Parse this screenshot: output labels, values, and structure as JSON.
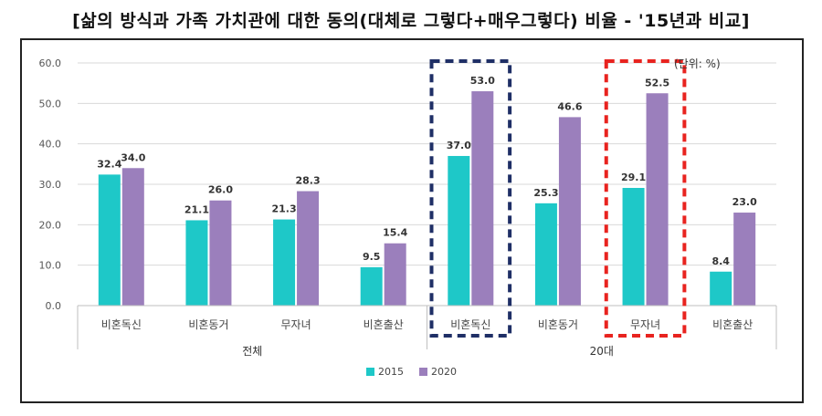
{
  "title": "[삶의 방식과 가족 가치관에 대한 동의(대체로 그렇다+매우그렇다) 비율 - '15년과 비교]",
  "unit_label": "(단위: %)",
  "colors": {
    "s2015": "#1ec8c8",
    "s2020": "#9b7fbc",
    "highlight_blue": "#1f2f66",
    "highlight_red": "#e8231f",
    "grid": "#d9d9d9"
  },
  "chart_data": {
    "type": "bar",
    "ylim": [
      0,
      60
    ],
    "yticks": [
      "0.0",
      "10.0",
      "20.0",
      "30.0",
      "40.0",
      "50.0",
      "60.0"
    ],
    "groups": [
      "전체",
      "20대"
    ],
    "categories": [
      "비혼독신",
      "비혼동거",
      "무자녀",
      "비혼출산",
      "비혼독신",
      "비혼동거",
      "무자녀",
      "비혼출산"
    ],
    "series": [
      {
        "name": "2015",
        "values": [
          32.4,
          21.1,
          21.3,
          9.5,
          37.0,
          25.3,
          29.1,
          8.4
        ]
      },
      {
        "name": "2020",
        "values": [
          34.0,
          26.0,
          28.3,
          15.4,
          53.0,
          46.6,
          52.5,
          23.0
        ]
      }
    ],
    "legend": "bottom",
    "grid": true
  }
}
